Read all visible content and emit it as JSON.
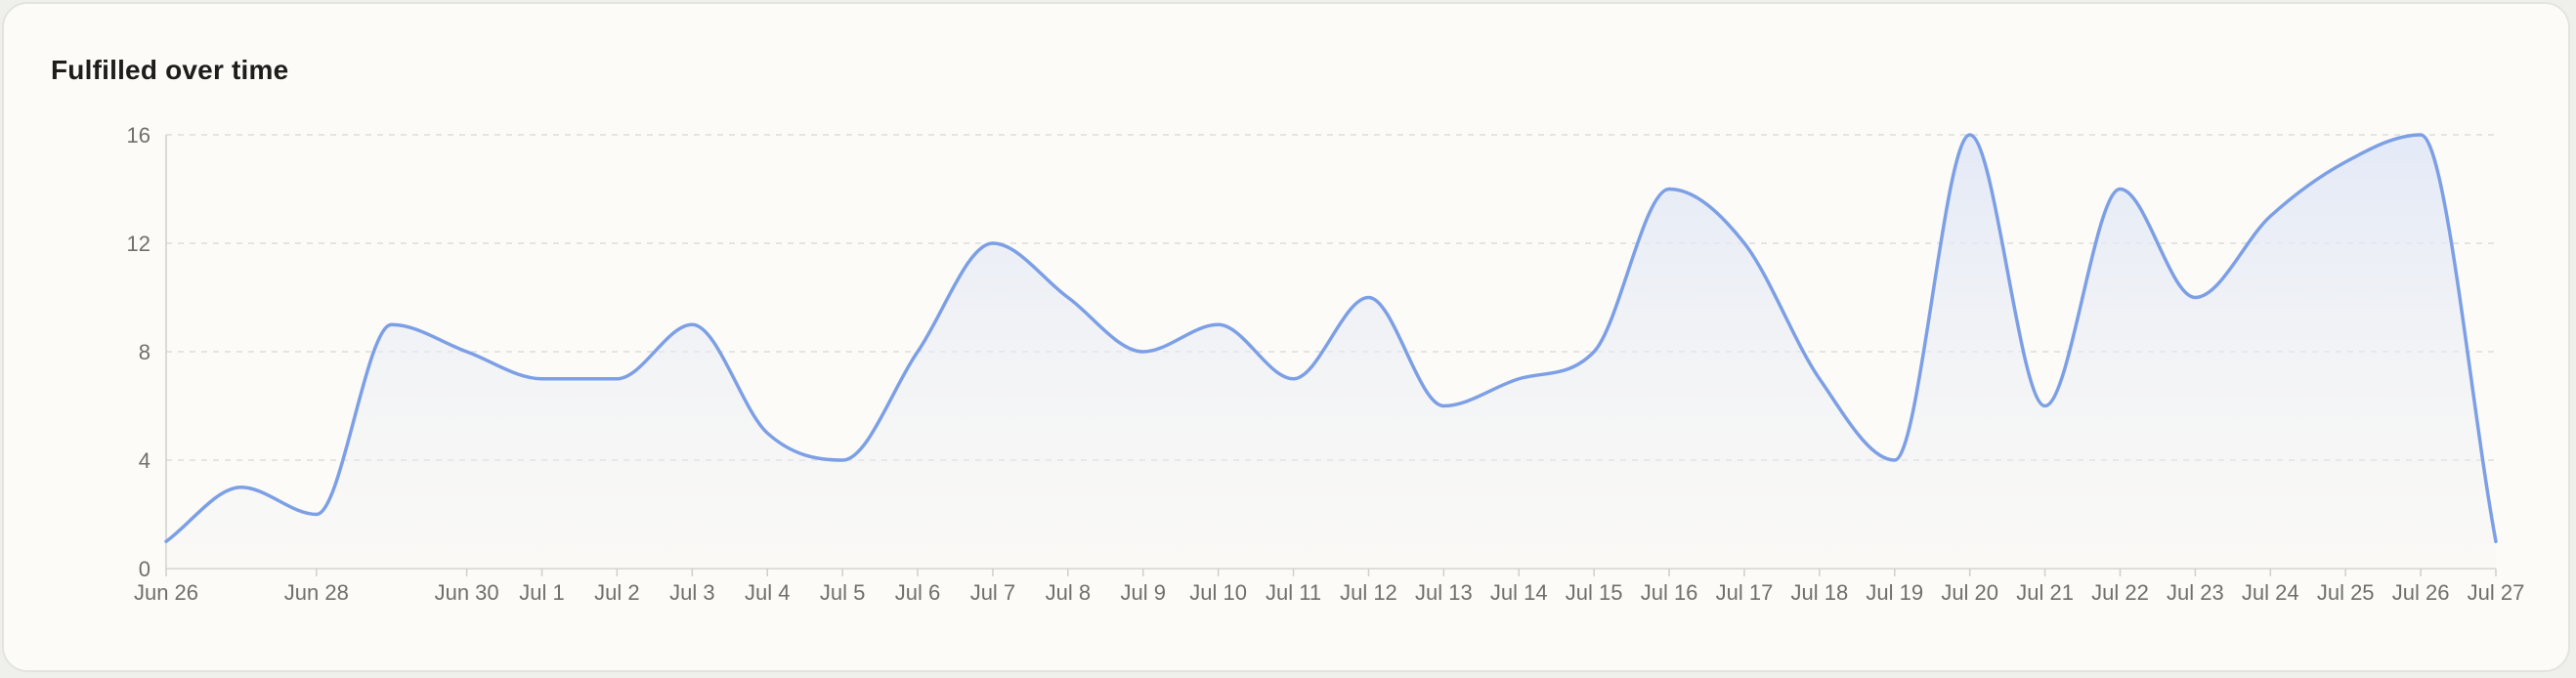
{
  "card": {
    "title": "Fulfilled over time"
  },
  "colors": {
    "line": "#7c9fe6",
    "fill_top": "#dfe6f7",
    "grid": "#dcdcd8",
    "axis": "#cfcfcb",
    "label": "#6f6f6c"
  },
  "chart_data": {
    "type": "area",
    "title": "Fulfilled over time",
    "xlabel": "",
    "ylabel": "",
    "ylim": [
      0,
      16
    ],
    "yticks": [
      0,
      4,
      8,
      12,
      16
    ],
    "grid": true,
    "x_tick_labels": [
      "Jun 26",
      "Jun 28",
      "Jun 30",
      "Jul 1",
      "Jul 2",
      "Jul 3",
      "Jul 4",
      "Jul 5",
      "Jul 6",
      "Jul 7",
      "Jul 8",
      "Jul 9",
      "Jul 10",
      "Jul 11",
      "Jul 12",
      "Jul 13",
      "Jul 14",
      "Jul 15",
      "Jul 16",
      "Jul 17",
      "Jul 18",
      "Jul 19",
      "Jul 20",
      "Jul 21",
      "Jul 22",
      "Jul 23",
      "Jul 24",
      "Jul 25",
      "Jul 26",
      "Jul 27"
    ],
    "x": [
      "Jun 26",
      "Jun 27",
      "Jun 28",
      "Jun 29",
      "Jun 30",
      "Jul 1",
      "Jul 2",
      "Jul 3",
      "Jul 4",
      "Jul 5",
      "Jul 6",
      "Jul 7",
      "Jul 8",
      "Jul 9",
      "Jul 10",
      "Jul 11",
      "Jul 12",
      "Jul 13",
      "Jul 14",
      "Jul 15",
      "Jul 16",
      "Jul 17",
      "Jul 18",
      "Jul 19",
      "Jul 20",
      "Jul 21",
      "Jul 22",
      "Jul 23",
      "Jul 24",
      "Jul 25",
      "Jul 26",
      "Jul 27"
    ],
    "values": [
      1,
      3,
      2,
      9,
      8,
      7,
      7,
      9,
      5,
      4,
      8,
      12,
      10,
      8,
      9,
      7,
      10,
      6,
      7,
      8,
      14,
      12,
      7,
      4,
      16,
      6,
      14,
      10,
      13,
      15,
      16,
      1
    ]
  }
}
